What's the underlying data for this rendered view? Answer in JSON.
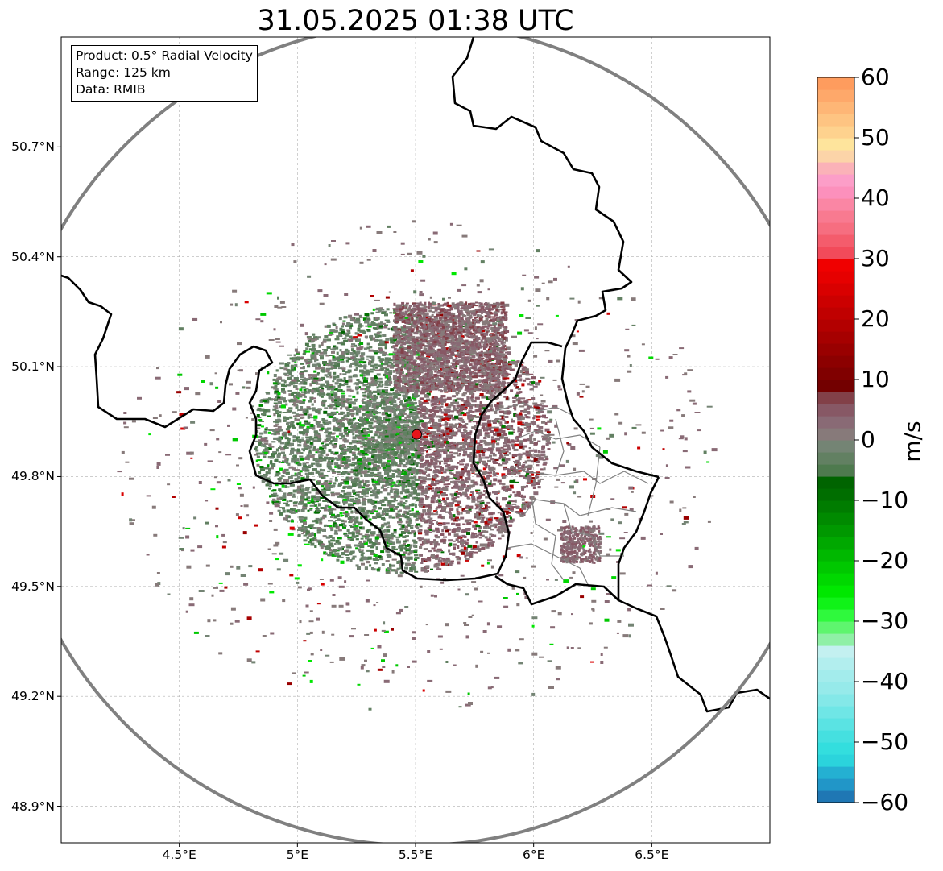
{
  "title": "31.05.2025 01:38 UTC",
  "info_box": {
    "lines": [
      "Product: 0.5° Radial Velocity",
      "Range: 125 km",
      "Data: RMIB"
    ]
  },
  "map": {
    "lon_range": [
      4.0,
      7.0
    ],
    "lat_range": [
      48.8,
      51.0
    ],
    "x_ticks": [
      {
        "value": 4.5,
        "label": "4.5°E"
      },
      {
        "value": 5.0,
        "label": "5°E"
      },
      {
        "value": 5.5,
        "label": "5.5°E"
      },
      {
        "value": 6.0,
        "label": "6°E"
      },
      {
        "value": 6.5,
        "label": "6.5°E"
      }
    ],
    "y_ticks": [
      {
        "value": 50.7,
        "label": "50.7°N"
      },
      {
        "value": 50.4,
        "label": "50.4°N"
      },
      {
        "value": 50.1,
        "label": "50.1°N"
      },
      {
        "value": 49.8,
        "label": "49.8°N"
      },
      {
        "value": 49.5,
        "label": "49.5°N"
      },
      {
        "value": 49.2,
        "label": "49.2°N"
      },
      {
        "value": 48.9,
        "label": "48.9°N"
      }
    ],
    "radar_site": {
      "lon": 5.505,
      "lat": 49.915,
      "color": "#e8141a"
    },
    "range_ring_color": "#808080",
    "grid": true
  },
  "colorbar": {
    "unit": "m/s",
    "min": -60,
    "max": 60,
    "ticks": [
      "60",
      "50",
      "40",
      "30",
      "20",
      "10",
      "0",
      "−10",
      "−20",
      "−30",
      "−40",
      "−50",
      "−60"
    ],
    "tick_values": [
      60,
      50,
      40,
      30,
      20,
      10,
      0,
      -10,
      -20,
      -30,
      -40,
      -50,
      -60
    ],
    "bands": [
      {
        "from": -60,
        "to": -58,
        "color": "#1f77b4"
      },
      {
        "from": -58,
        "to": -56,
        "color": "#2196c8"
      },
      {
        "from": -56,
        "to": -54,
        "color": "#24b0d2"
      },
      {
        "from": -54,
        "to": -52,
        "color": "#2bd4dc"
      },
      {
        "from": -52,
        "to": -50,
        "color": "#33dede"
      },
      {
        "from": -50,
        "to": -48,
        "color": "#45e0e0"
      },
      {
        "from": -48,
        "to": -46,
        "color": "#5ae3e3"
      },
      {
        "from": -46,
        "to": -44,
        "color": "#6fe6e6"
      },
      {
        "from": -44,
        "to": -42,
        "color": "#84e8e8"
      },
      {
        "from": -42,
        "to": -40,
        "color": "#96eaea"
      },
      {
        "from": -40,
        "to": -38,
        "color": "#a3ecec"
      },
      {
        "from": -38,
        "to": -36,
        "color": "#b2eeee"
      },
      {
        "from": -36,
        "to": -34,
        "color": "#c3f0f0"
      },
      {
        "from": -34,
        "to": -32,
        "color": "#8ff0a6"
      },
      {
        "from": -32,
        "to": -30,
        "color": "#5ef56e"
      },
      {
        "from": -30,
        "to": -28,
        "color": "#2ff93d"
      },
      {
        "from": -28,
        "to": -26,
        "color": "#10f318"
      },
      {
        "from": -26,
        "to": -24,
        "color": "#00e800"
      },
      {
        "from": -24,
        "to": -22,
        "color": "#00d800"
      },
      {
        "from": -22,
        "to": -20,
        "color": "#00c800"
      },
      {
        "from": -20,
        "to": -18,
        "color": "#00b800"
      },
      {
        "from": -18,
        "to": -16,
        "color": "#00a800"
      },
      {
        "from": -16,
        "to": -14,
        "color": "#009800"
      },
      {
        "from": -14,
        "to": -12,
        "color": "#008a00"
      },
      {
        "from": -12,
        "to": -10,
        "color": "#007c00"
      },
      {
        "from": -10,
        "to": -8,
        "color": "#006e00"
      },
      {
        "from": -8,
        "to": -6,
        "color": "#006400"
      },
      {
        "from": -6,
        "to": -4,
        "color": "#4e7a4e"
      },
      {
        "from": -4,
        "to": -2,
        "color": "#628062"
      },
      {
        "from": -2,
        "to": 0,
        "color": "#748474"
      },
      {
        "from": 0,
        "to": 2,
        "color": "#877a7a"
      },
      {
        "from": 2,
        "to": 4,
        "color": "#896a75"
      },
      {
        "from": 4,
        "to": 6,
        "color": "#875865"
      },
      {
        "from": 6,
        "to": 8,
        "color": "#824048"
      },
      {
        "from": 8,
        "to": 10,
        "color": "#730000"
      },
      {
        "from": 10,
        "to": 12,
        "color": "#800000"
      },
      {
        "from": 12,
        "to": 14,
        "color": "#8c0000"
      },
      {
        "from": 14,
        "to": 16,
        "color": "#990000"
      },
      {
        "from": 16,
        "to": 18,
        "color": "#a60000"
      },
      {
        "from": 18,
        "to": 20,
        "color": "#b30000"
      },
      {
        "from": 20,
        "to": 22,
        "color": "#c00000"
      },
      {
        "from": 22,
        "to": 24,
        "color": "#cc0000"
      },
      {
        "from": 24,
        "to": 26,
        "color": "#d90000"
      },
      {
        "from": 26,
        "to": 28,
        "color": "#e60000"
      },
      {
        "from": 28,
        "to": 30,
        "color": "#f00000"
      },
      {
        "from": 30,
        "to": 32,
        "color": "#f24a5a"
      },
      {
        "from": 32,
        "to": 34,
        "color": "#f45c6c"
      },
      {
        "from": 34,
        "to": 36,
        "color": "#f66e80"
      },
      {
        "from": 36,
        "to": 38,
        "color": "#f87a90"
      },
      {
        "from": 38,
        "to": 40,
        "color": "#fa86a4"
      },
      {
        "from": 40,
        "to": 42,
        "color": "#fc90bc"
      },
      {
        "from": 42,
        "to": 44,
        "color": "#fc9ec8"
      },
      {
        "from": 44,
        "to": 46,
        "color": "#fbb2b8"
      },
      {
        "from": 46,
        "to": 48,
        "color": "#fcd4a8"
      },
      {
        "from": 48,
        "to": 50,
        "color": "#fee49c"
      },
      {
        "from": 50,
        "to": 52,
        "color": "#fed28e"
      },
      {
        "from": 52,
        "to": 54,
        "color": "#fec482"
      },
      {
        "from": 54,
        "to": 56,
        "color": "#feb676"
      },
      {
        "from": 56,
        "to": 58,
        "color": "#fea86a"
      },
      {
        "from": 58,
        "to": 60,
        "color": "#fe9c5e"
      }
    ]
  }
}
